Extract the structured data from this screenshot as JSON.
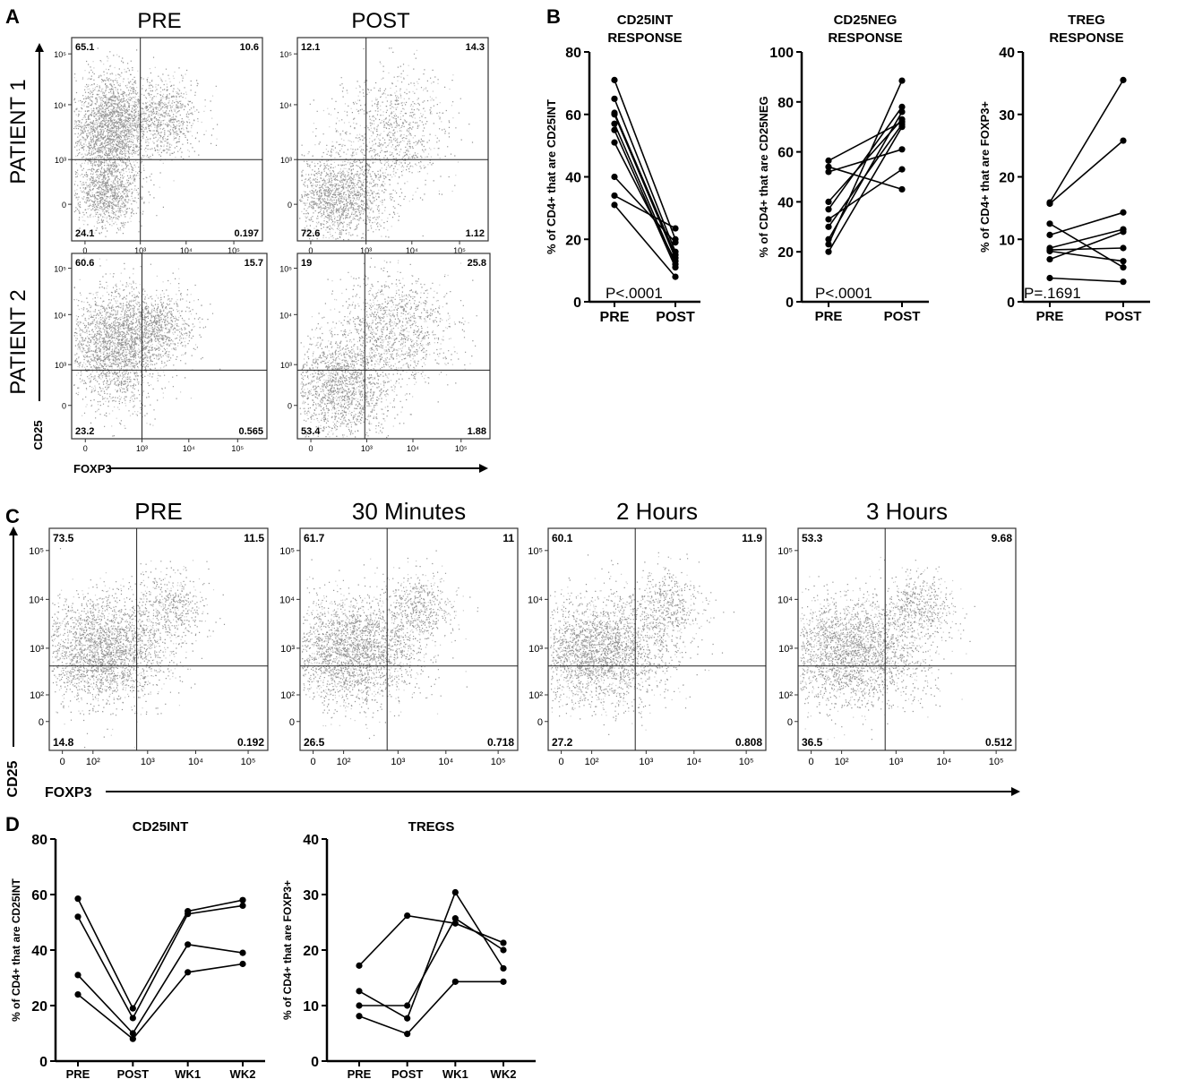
{
  "panels": {
    "A": {
      "label": "A",
      "col_titles": [
        "PRE",
        "POST"
      ],
      "row_titles": [
        "PATIENT 1",
        "PATIENT 2"
      ],
      "x_label": "FOXP3",
      "y_label": "CD25",
      "y_ticks": [
        "10⁵",
        "10⁴",
        "10³",
        "0"
      ],
      "x_ticks": [
        "0",
        "10³",
        "10⁴",
        "10⁵"
      ],
      "plots": [
        {
          "row": 0,
          "col": 0,
          "quadrants": {
            "ul": "65.1",
            "ur": "10.6",
            "ll": "24.1",
            "lr": "0.197"
          }
        },
        {
          "row": 0,
          "col": 1,
          "quadrants": {
            "ul": "12.1",
            "ur": "14.3",
            "ll": "72.6",
            "lr": "1.12"
          }
        },
        {
          "row": 1,
          "col": 0,
          "quadrants": {
            "ul": "60.6",
            "ur": "15.7",
            "ll": "23.2",
            "lr": "0.565"
          }
        },
        {
          "row": 1,
          "col": 1,
          "quadrants": {
            "ul": "19",
            "ur": "25.8",
            "ll": "53.4",
            "lr": "1.88"
          }
        }
      ]
    },
    "C": {
      "label": "C",
      "x_label": "FOXP3",
      "y_label": "CD25",
      "y_ticks": [
        "10⁵",
        "10⁴",
        "10³",
        "10²",
        "0"
      ],
      "x_ticks": [
        "0",
        "10²",
        "10³",
        "10⁴",
        "10⁵"
      ],
      "plots": [
        {
          "title": "PRE",
          "quadrants": {
            "ul": "73.5",
            "ur": "11.5",
            "ll": "14.8",
            "lr": "0.192"
          }
        },
        {
          "title": "30 Minutes",
          "quadrants": {
            "ul": "61.7",
            "ur": "11",
            "ll": "26.5",
            "lr": "0.718"
          }
        },
        {
          "title": "2 Hours",
          "quadrants": {
            "ul": "60.1",
            "ur": "11.9",
            "ll": "27.2",
            "lr": "0.808"
          }
        },
        {
          "title": "3 Hours",
          "quadrants": {
            "ul": "53.3",
            "ur": "9.68",
            "ll": "36.5",
            "lr": "0.512"
          }
        }
      ]
    },
    "B": {
      "label": "B"
    },
    "D": {
      "label": "D"
    }
  },
  "chart_data": [
    {
      "panel": "B",
      "type": "line",
      "title": "CD25INT RESPONSE",
      "title_lines": [
        "CD25INT",
        "RESPONSE"
      ],
      "categories": [
        "PRE",
        "POST"
      ],
      "ylabel": "% of CD4+ that are CD25INT",
      "ylim": [
        0,
        80
      ],
      "yticks": [
        0,
        20,
        40,
        60,
        80
      ],
      "annotation": "P<.0001",
      "series": [
        {
          "values": [
            71,
            20
          ]
        },
        {
          "values": [
            65,
            16
          ]
        },
        {
          "values": [
            60.5,
            15
          ]
        },
        {
          "values": [
            60,
            14
          ]
        },
        {
          "values": [
            57,
            12
          ]
        },
        {
          "values": [
            55,
            11
          ]
        },
        {
          "values": [
            51,
            13
          ]
        },
        {
          "values": [
            40,
            19
          ]
        },
        {
          "values": [
            34,
            23.5
          ]
        },
        {
          "values": [
            31,
            8
          ]
        }
      ]
    },
    {
      "panel": "B",
      "type": "line",
      "title": "CD25NEG RESPONSE",
      "title_lines": [
        "CD25NEG",
        "RESPONSE"
      ],
      "categories": [
        "PRE",
        "POST"
      ],
      "ylabel": "% of CD4+ that are CD25NEG",
      "ylim": [
        0,
        100
      ],
      "yticks": [
        0,
        20,
        40,
        60,
        80,
        100
      ],
      "annotation": "P<.0001",
      "series": [
        {
          "values": [
            56.5,
            72
          ]
        },
        {
          "values": [
            54,
            45
          ]
        },
        {
          "values": [
            52,
            61
          ]
        },
        {
          "values": [
            40,
            73
          ]
        },
        {
          "values": [
            37,
            78
          ]
        },
        {
          "values": [
            33,
            53
          ]
        },
        {
          "values": [
            30,
            71
          ]
        },
        {
          "values": [
            25,
            76
          ]
        },
        {
          "values": [
            23,
            88.5
          ]
        },
        {
          "values": [
            20,
            70
          ]
        }
      ]
    },
    {
      "panel": "B",
      "type": "line",
      "title": "TREG RESPONSE",
      "title_lines": [
        "TREG",
        "RESPONSE"
      ],
      "categories": [
        "PRE",
        "POST"
      ],
      "ylabel": "% of CD4+ that are FOXP3+",
      "ylim": [
        0,
        40
      ],
      "yticks": [
        0,
        10,
        20,
        30,
        40
      ],
      "annotation": "P=.1691",
      "series": [
        {
          "values": [
            15.9,
            35.5
          ]
        },
        {
          "values": [
            15.7,
            25.8
          ]
        },
        {
          "values": [
            12.5,
            5.5
          ]
        },
        {
          "values": [
            10.7,
            14.3
          ]
        },
        {
          "values": [
            8.6,
            11.6
          ]
        },
        {
          "values": [
            8.3,
            8.6
          ]
        },
        {
          "values": [
            8.1,
            6.5
          ]
        },
        {
          "values": [
            6.8,
            11.2
          ]
        },
        {
          "values": [
            3.8,
            3.2
          ]
        }
      ]
    },
    {
      "panel": "D",
      "type": "line",
      "title": "CD25INT",
      "title_lines": [
        "CD25INT"
      ],
      "categories": [
        "PRE",
        "POST",
        "WK1",
        "WK2"
      ],
      "ylabel": "% of CD4+ that are CD25INT",
      "ylim": [
        0,
        80
      ],
      "yticks": [
        0,
        20,
        40,
        60,
        80
      ],
      "series": [
        {
          "values": [
            58.5,
            19,
            54,
            58
          ]
        },
        {
          "values": [
            52,
            15.5,
            53,
            56
          ]
        },
        {
          "values": [
            31,
            10,
            42,
            39
          ]
        },
        {
          "values": [
            24,
            8,
            32,
            35
          ]
        }
      ]
    },
    {
      "panel": "D",
      "type": "line",
      "title": "TREGS",
      "title_lines": [
        "TREGS"
      ],
      "categories": [
        "PRE",
        "POST",
        "WK1",
        "WK2"
      ],
      "ylabel": "% of CD4+ that are FOXP3+",
      "ylim": [
        0,
        40
      ],
      "yticks": [
        0,
        10,
        20,
        30,
        40
      ],
      "series": [
        {
          "values": [
            17.2,
            26.2,
            24.8,
            21.3
          ]
        },
        {
          "values": [
            12.6,
            7.7,
            30.4,
            16.7
          ]
        },
        {
          "values": [
            10,
            10,
            25.7,
            20
          ]
        },
        {
          "values": [
            8.1,
            4.9,
            14.3,
            14.3
          ]
        }
      ]
    }
  ]
}
